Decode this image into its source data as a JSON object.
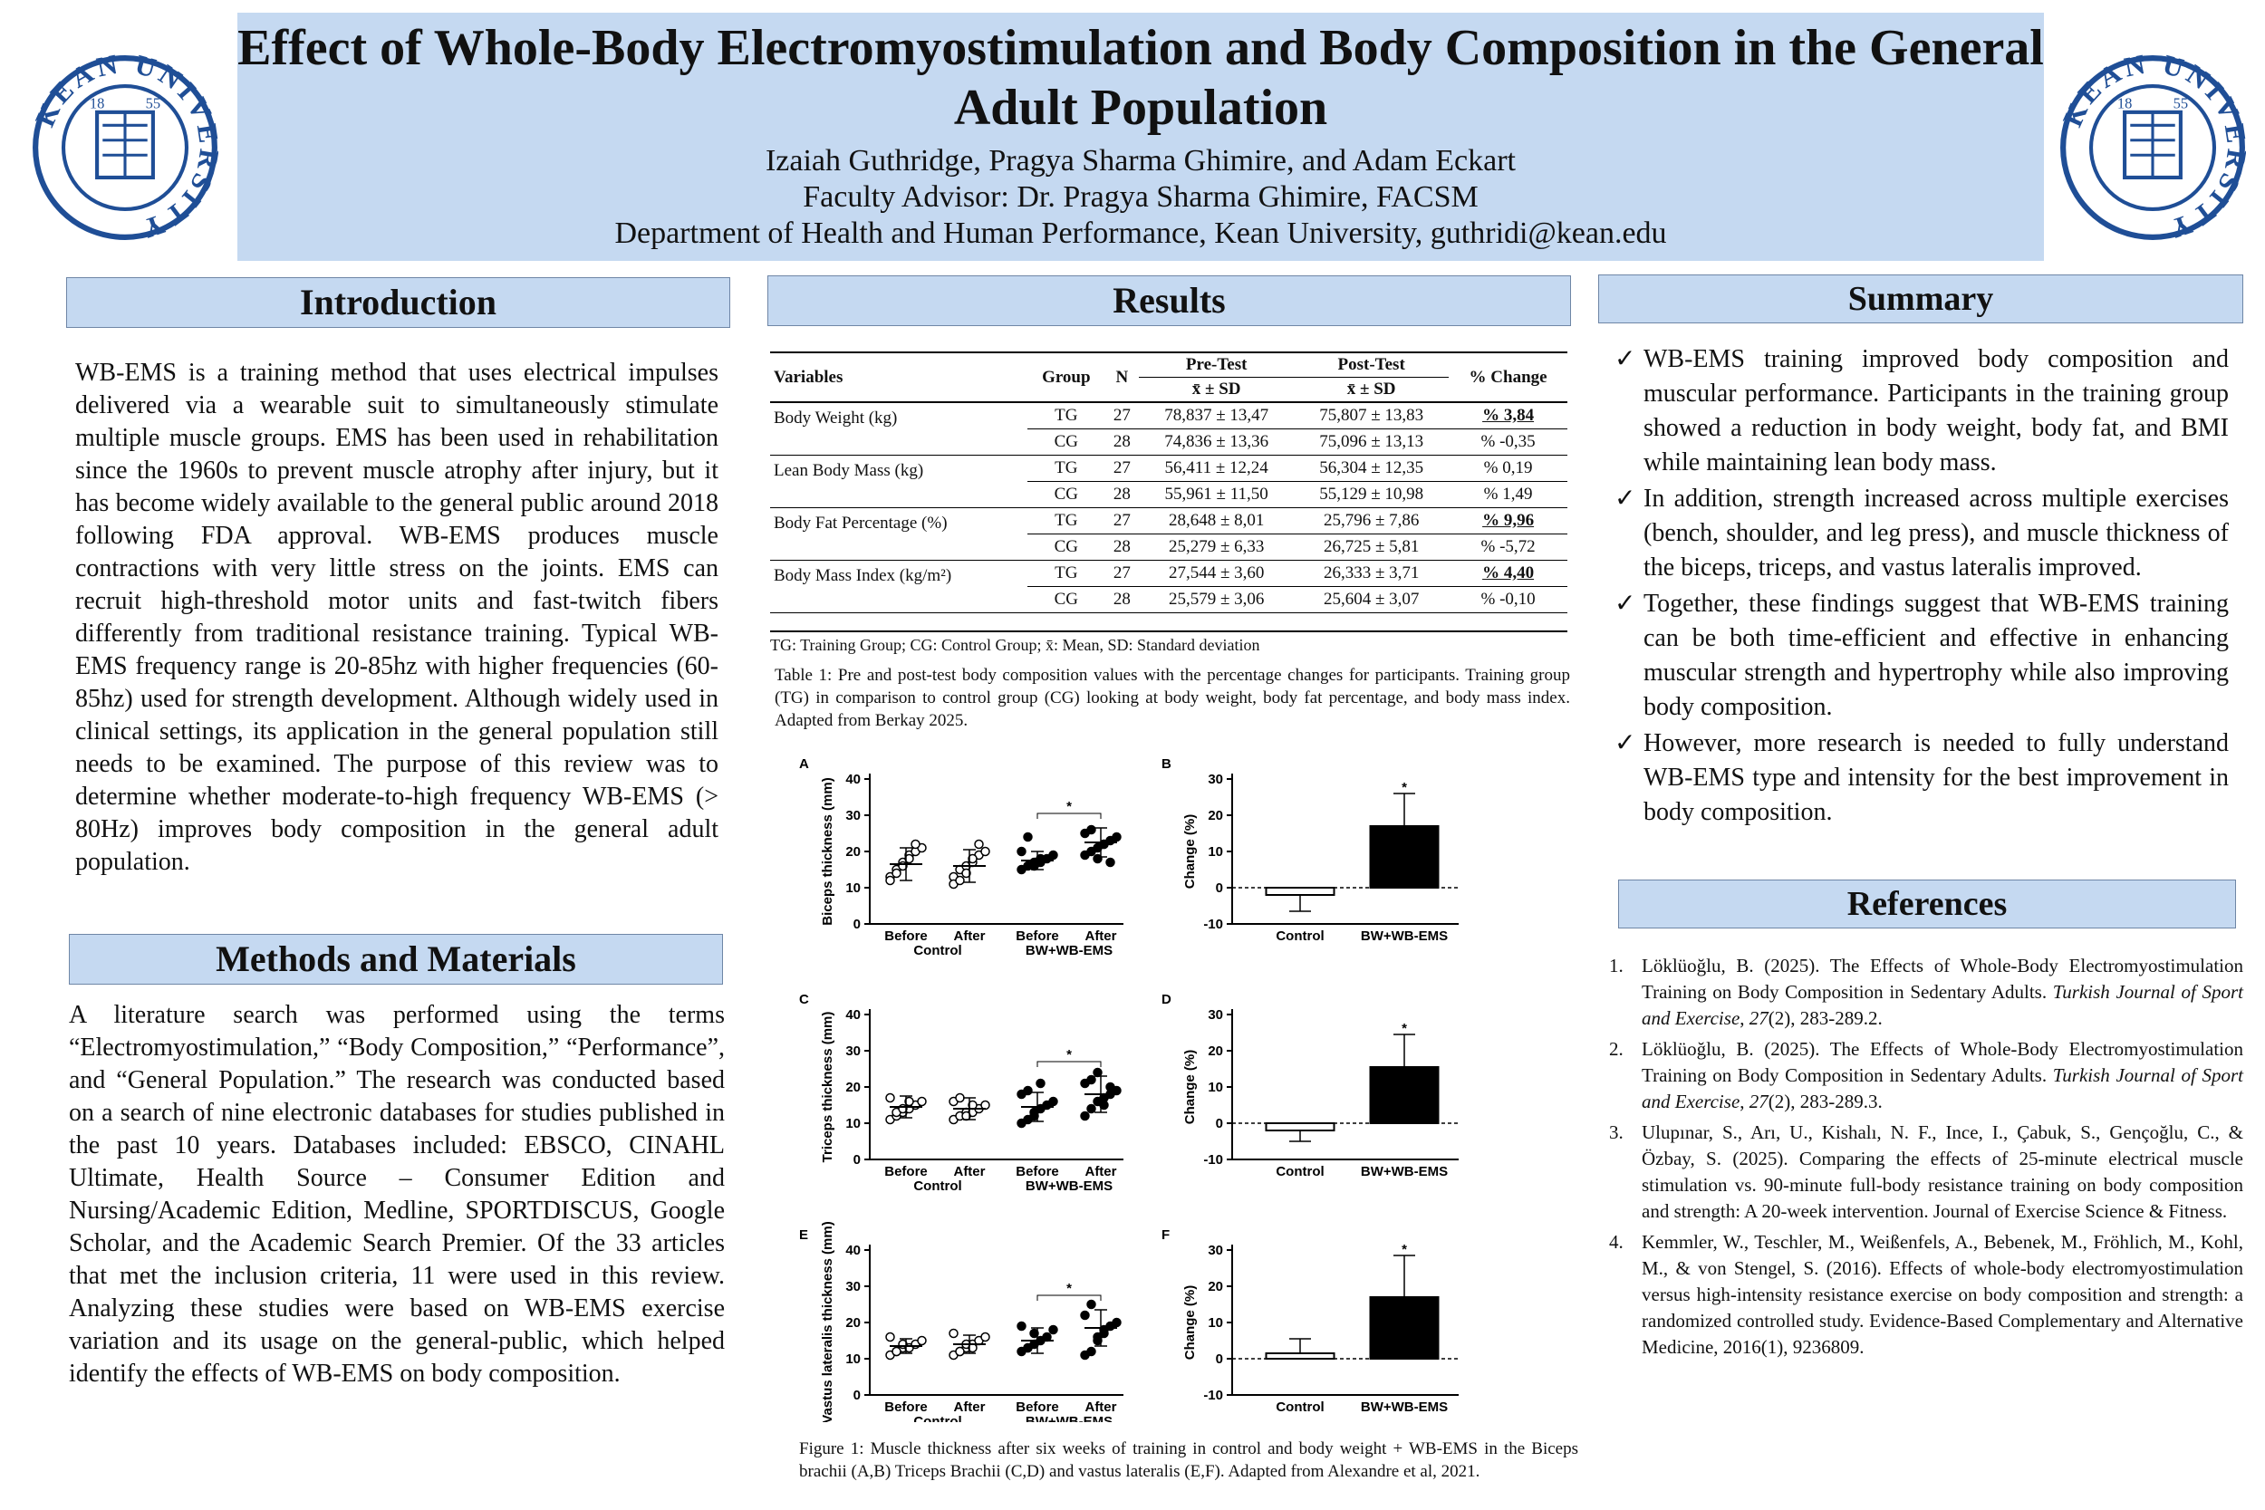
{
  "header": {
    "title": "Effect of Whole-Body Electromyostimulation and Body Composition in the General Adult Population",
    "authors": "Izaiah Guthridge, Pragya Sharma Ghimire, and Adam Eckart",
    "advisor": "Faculty Advisor: Dr. Pragya Sharma Ghimire, FACSM",
    "department": "Department of Health and Human Performance, Kean University, guthridi@kean.edu",
    "logo_text": "KEAN UNIVERSITY",
    "logo_year_left": "18",
    "logo_year_right": "55"
  },
  "introduction": {
    "heading": "Introduction",
    "text": "WB-EMS is a training method that uses electrical impulses delivered via a wearable suit to simultaneously stimulate multiple muscle groups. EMS has been used in rehabilitation since the 1960s to prevent muscle atrophy after injury, but it has become widely available to the general public around 2018 following FDA approval. WB-EMS produces muscle contractions with very little stress on the joints. EMS can recruit high-threshold motor units and fast-twitch fibers differently from traditional resistance training. Typical WB-EMS frequency range is 20-85hz with higher frequencies (60-85hz) used for strength development. Although widely used in clinical settings, its application in the general population still needs to be examined. The purpose of this review was to determine whether moderate-to-high frequency WB-EMS (> 80Hz) improves body composition in the general adult population."
  },
  "methods": {
    "heading": "Methods and Materials",
    "text": "A literature search was performed using the terms “Electromyostimulation,” “Body Composition,” “Performance”, and “General Population.” The research was conducted based on a search of nine electronic databases for studies published in the past 10 years. Databases included: EBSCO, CINAHL Ultimate, Health Source – Consumer Edition and Nursing/Academic Edition, Medline, SPORTDISCUS, Google Scholar, and the Academic Search Premier. Of the 33 articles that met the inclusion criteria, 11 were used in this review. Analyzing these studies were based on WB-EMS exercise variation and its usage on the general-public, which helped identify the effects of WB-EMS on body composition."
  },
  "results": {
    "heading": "Results",
    "table": {
      "headers": [
        "Variables",
        "Group",
        "N",
        "Pre-Test",
        "Post-Test",
        "% Change"
      ],
      "subheader": "x̄ ± SD",
      "rows": [
        {
          "variable": "Body Weight (kg)",
          "group": "TG",
          "n": "27",
          "pre": "78,837 ± 13,47",
          "post": "75,807 ± 13,83",
          "change": "% 3,84",
          "bold": true
        },
        {
          "variable": "",
          "group": "CG",
          "n": "28",
          "pre": "74,836 ± 13,36",
          "post": "75,096 ± 13,13",
          "change": "% -0,35",
          "bold": false
        },
        {
          "variable": "Lean Body Mass (kg)",
          "group": "TG",
          "n": "27",
          "pre": "56,411 ± 12,24",
          "post": "56,304 ± 12,35",
          "change": "% 0,19",
          "bold": false
        },
        {
          "variable": "",
          "group": "CG",
          "n": "28",
          "pre": "55,961 ± 11,50",
          "post": "55,129 ± 10,98",
          "change": "% 1,49",
          "bold": false
        },
        {
          "variable": "Body Fat Percentage (%)",
          "group": "TG",
          "n": "27",
          "pre": "28,648 ± 8,01",
          "post": "25,796 ± 7,86",
          "change": "% 9,96",
          "bold": true
        },
        {
          "variable": "",
          "group": "CG",
          "n": "28",
          "pre": "25,279 ± 6,33",
          "post": "26,725 ± 5,81",
          "change": "% -5,72",
          "bold": false
        },
        {
          "variable": "Body Mass Index (kg/m²)",
          "group": "TG",
          "n": "27",
          "pre": "27,544 ± 3,60",
          "post": "26,333 ± 3,71",
          "change": "% 4,40",
          "bold": true
        },
        {
          "variable": "",
          "group": "CG",
          "n": "28",
          "pre": "25,579 ± 3,06",
          "post": "25,604 ± 3,07",
          "change": "% -0,10",
          "bold": false
        }
      ],
      "footnote": "TG: Training Group; CG: Control Group; x̄: Mean, SD: Standard deviation"
    },
    "table_caption": "Table 1: Pre and post-test body composition values with the percentage changes for participants. Training group (TG) in comparison to control group (CG) looking at body weight, body fat percentage, and body mass index. Adapted from Berkay 2025.",
    "figure_caption": "Figure 1: Muscle thickness after six weeks of training in control and body weight + WB-EMS in the Biceps brachii (A,B) Triceps Brachii (C,D) and vastus lateralis (E,F). Adapted from Alexandre et al, 2021."
  },
  "chart_data": [
    {
      "type": "scatter",
      "panel": "A",
      "ylabel": "Biceps thickness (mm)",
      "ylim": [
        0,
        40
      ],
      "yticks": [
        0,
        10,
        20,
        30,
        40
      ],
      "categories": [
        "Before",
        "After",
        "Before",
        "After"
      ],
      "group_labels": [
        "Control",
        "BW+WB-EMS"
      ],
      "means": [
        16.5,
        16.0,
        17.5,
        22.5
      ],
      "sd": [
        4.5,
        4.5,
        2.5,
        4.0
      ],
      "points": [
        [
          13,
          15,
          17,
          19,
          20,
          21,
          12,
          14,
          16,
          18,
          22
        ],
        [
          13,
          15,
          16,
          17,
          19,
          20,
          11,
          12,
          14,
          18,
          22
        ],
        [
          15,
          16,
          17,
          17,
          18,
          19,
          20,
          24,
          16,
          18
        ],
        [
          19,
          20,
          21,
          22,
          23,
          24,
          25,
          26,
          18,
          22,
          17
        ]
      ],
      "significance": "*"
    },
    {
      "type": "bar",
      "panel": "B",
      "ylabel": "Change (%)",
      "ylim": [
        -10,
        30
      ],
      "yticks": [
        -10,
        0,
        10,
        20,
        30
      ],
      "categories": [
        "Control",
        "BW+WB-EMS"
      ],
      "values": [
        -2,
        17
      ],
      "error": [
        4.5,
        9
      ],
      "significance": "*"
    },
    {
      "type": "scatter",
      "panel": "C",
      "ylabel": "Triceps thickness (mm)",
      "ylim": [
        0,
        40
      ],
      "yticks": [
        0,
        10,
        20,
        30,
        40
      ],
      "categories": [
        "Before",
        "After",
        "Before",
        "After"
      ],
      "group_labels": [
        "Control",
        "BW+WB-EMS"
      ],
      "means": [
        14.5,
        14.0,
        14.5,
        18.0
      ],
      "sd": [
        3.0,
        3.0,
        4.0,
        5.0
      ],
      "points": [
        [
          11,
          12,
          13,
          14,
          15,
          16,
          17,
          13,
          14,
          16
        ],
        [
          11,
          12,
          13,
          13,
          14,
          15,
          16,
          17,
          12,
          15
        ],
        [
          10,
          11,
          12,
          14,
          15,
          16,
          18,
          19,
          13,
          21
        ],
        [
          12,
          14,
          16,
          17,
          18,
          19,
          21,
          22,
          24,
          15,
          20
        ]
      ],
      "significance": "*"
    },
    {
      "type": "bar",
      "panel": "D",
      "ylabel": "Change (%)",
      "ylim": [
        -10,
        30
      ],
      "yticks": [
        -10,
        0,
        10,
        20,
        30
      ],
      "categories": [
        "Control",
        "BW+WB-EMS"
      ],
      "values": [
        -2,
        15.5
      ],
      "error": [
        3,
        9
      ],
      "significance": "*"
    },
    {
      "type": "scatter",
      "panel": "E",
      "ylabel": "Vastus lateralis thickness (mm)",
      "ylim": [
        0,
        40
      ],
      "yticks": [
        0,
        10,
        20,
        30,
        40
      ],
      "categories": [
        "Before",
        "After",
        "Before",
        "After"
      ],
      "group_labels": [
        "Control",
        "BW+WB-EMS"
      ],
      "means": [
        13.5,
        14.0,
        15.0,
        18.5
      ],
      "sd": [
        2.0,
        2.5,
        3.5,
        5.0
      ],
      "points": [
        [
          11,
          12,
          13,
          13,
          14,
          15,
          16,
          12,
          14
        ],
        [
          11,
          12,
          13,
          14,
          15,
          16,
          17,
          12,
          14,
          13
        ],
        [
          12,
          13,
          14,
          15,
          16,
          18,
          19,
          13,
          17
        ],
        [
          11,
          12,
          15,
          17,
          19,
          20,
          22,
          25,
          16,
          18
        ]
      ],
      "significance": "*"
    },
    {
      "type": "bar",
      "panel": "F",
      "ylabel": "Change (%)",
      "ylim": [
        -10,
        30
      ],
      "yticks": [
        -10,
        0,
        10,
        20,
        30
      ],
      "categories": [
        "Control",
        "BW+WB-EMS"
      ],
      "values": [
        1.5,
        17
      ],
      "error": [
        4,
        11.5
      ],
      "significance": "*"
    }
  ],
  "summary": {
    "heading": "Summary",
    "items": [
      "WB-EMS training improved body composition and muscular performance. Participants in the training group showed a reduction in body weight, body fat, and BMI while maintaining lean body mass.",
      "In addition, strength increased across multiple exercises (bench, shoulder, and leg press), and muscle thickness of the biceps, triceps, and vastus lateralis improved.",
      "Together, these findings suggest that WB-EMS training can be both time-efficient and effective in enhancing muscular strength and hypertrophy while also improving body composition.",
      "However, more research is needed to fully understand WB-EMS type and intensity for the best improvement in body composition."
    ]
  },
  "references": {
    "heading": "References",
    "items": [
      {
        "num": "1.",
        "before": "Löklüoğlu, B. (2025). The Effects of Whole-Body Electromyostimulation Training on Body Composition in Sedentary Adults. ",
        "italic": "Turkish Journal of Sport and Exercise",
        "middle": ", ",
        "italic2": "27",
        "after": "(2), 283-289.2."
      },
      {
        "num": "2.",
        "before": "Löklüoğlu, B. (2025). The Effects of Whole-Body Electromyostimulation Training on Body Composition in Sedentary Adults. ",
        "italic": "Turkish Journal of Sport and Exercise",
        "middle": ", ",
        "italic2": "27",
        "after": "(2), 283-289.3."
      },
      {
        "num": "3.",
        "before": "Ulupınar, S., Arı, U., Kishalı, N. F., Ince, I., Çabuk, S., Gençoğlu, C., & Özbay, S. (2025). Comparing the effects of 25-minute electrical muscle stimulation vs. 90-minute full-body resistance training on body composition and strength: A 20-week intervention. Journal of Exercise Science & Fitness.",
        "italic": "",
        "middle": "",
        "italic2": "",
        "after": ""
      },
      {
        "num": "4.",
        "before": "Kemmler, W., Teschler, M., Weißenfels, A., Bebenek, M., Fröhlich, M., Kohl, M., & von Stengel, S. (2016). Effects of whole-body electromyostimulation versus high-intensity resistance exercise on body composition and strength: a randomized controlled study. Evidence-Based Complementary and Alternative Medicine, 2016(1), 9236809.",
        "italic": "",
        "middle": "",
        "italic2": "",
        "after": ""
      }
    ]
  },
  "colors": {
    "banner": "#c5d9f1",
    "logo_blue": "#1f4e96"
  }
}
